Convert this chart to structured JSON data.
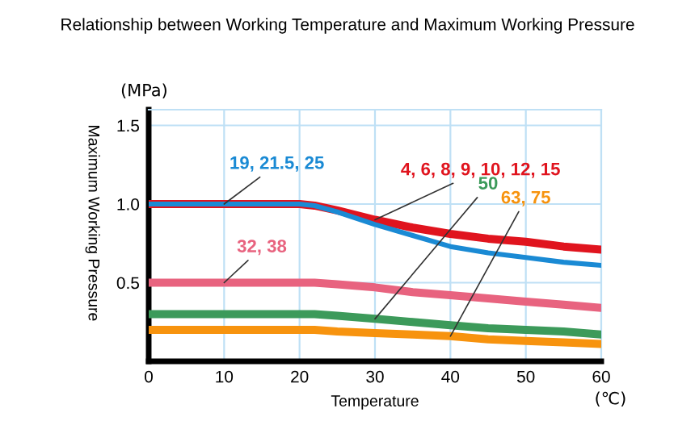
{
  "chart_data": {
    "type": "line",
    "title": "Relationship between Working Temperature and Maximum Working Pressure",
    "xlabel": "Temperature",
    "ylabel": "Maximum Working Pressure",
    "annotations": [
      "(MPa)",
      "(℃)"
    ],
    "x": [
      0,
      10,
      20,
      22,
      25,
      30,
      35,
      40,
      45,
      50,
      55,
      60
    ],
    "series": [
      {
        "name": "19, 21.5, 25",
        "color": "#1a8ad4",
        "values": [
          1.0,
          1.0,
          1.0,
          0.99,
          0.95,
          0.87,
          0.8,
          0.73,
          0.69,
          0.66,
          0.63,
          0.61
        ]
      },
      {
        "name": "4, 6, 8, 9, 10, 12, 15",
        "color": "#e0141e",
        "values": [
          1.0,
          1.0,
          1.0,
          0.99,
          0.96,
          0.9,
          0.85,
          0.81,
          0.78,
          0.76,
          0.73,
          0.71
        ]
      },
      {
        "name": "50",
        "color": "#3c9a5a",
        "values": [
          0.3,
          0.3,
          0.3,
          0.3,
          0.29,
          0.27,
          0.25,
          0.23,
          0.21,
          0.2,
          0.19,
          0.17
        ]
      },
      {
        "name": "63, 75",
        "color": "#f7930e",
        "values": [
          0.2,
          0.2,
          0.2,
          0.2,
          0.19,
          0.18,
          0.17,
          0.16,
          0.14,
          0.13,
          0.12,
          0.11
        ]
      },
      {
        "name": "32, 38",
        "color": "#e8637f",
        "values": [
          0.5,
          0.5,
          0.5,
          0.5,
          0.49,
          0.47,
          0.44,
          0.42,
          0.4,
          0.38,
          0.36,
          0.34
        ]
      }
    ],
    "xlim": [
      0,
      60
    ],
    "ylim": [
      0,
      1.6
    ],
    "xticks": [
      0,
      10,
      20,
      30,
      40,
      50,
      60
    ],
    "yticks": [
      {
        "value": 0,
        "label": null
      },
      0.5,
      {
        "value": 1.0,
        "label": "1.0"
      },
      1.5
    ],
    "grid": true,
    "legend": false,
    "marker": "none",
    "line_style": "solid"
  }
}
